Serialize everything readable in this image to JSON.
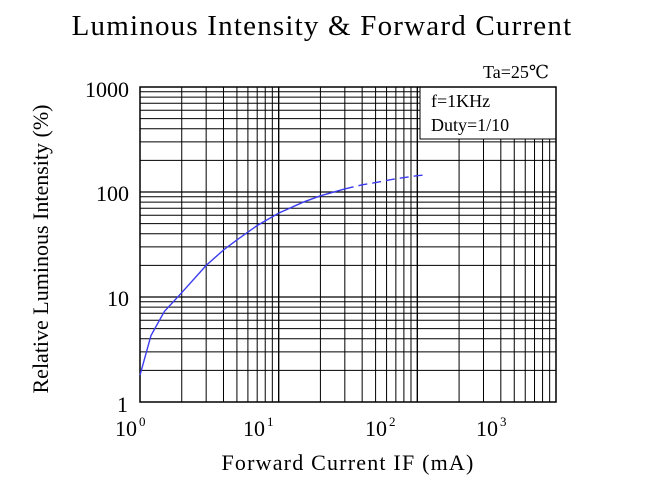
{
  "chart_data": {
    "type": "line",
    "title": "Luminous Intensity & Forward Current",
    "xlabel": "Forward Current IF (mA)",
    "ylabel": "Relative Luminous Intensity (%)",
    "x_scale": "log",
    "y_scale": "log",
    "xlim": [
      1,
      1000
    ],
    "ylim": [
      1,
      1000
    ],
    "x_ticks": [
      {
        "base": "10",
        "exp": "0"
      },
      {
        "base": "10",
        "exp": "1"
      },
      {
        "base": "10",
        "exp": "2"
      },
      {
        "base": "10",
        "exp": "3"
      }
    ],
    "y_ticks": [
      "1000",
      "100",
      "10",
      "1"
    ],
    "y_tick_values": [
      1000,
      100,
      10,
      1
    ],
    "grid": true,
    "annotations": {
      "temperature": "Ta=25℃",
      "frequency": "f=1KHz",
      "duty": "Duty=1/10"
    },
    "line_color": "#3b3bf0",
    "series": [
      {
        "x": [
          1,
          1.2,
          1.5,
          2,
          3,
          4,
          5,
          7,
          10,
          15,
          20,
          30,
          40,
          50,
          70,
          100,
          110
        ],
        "y": [
          1.8,
          4.3,
          7.3,
          11,
          20,
          28,
          35,
          48,
          63,
          80,
          92,
          107,
          117,
          123,
          134,
          143,
          145
        ],
        "solid_until": 30
      }
    ]
  }
}
